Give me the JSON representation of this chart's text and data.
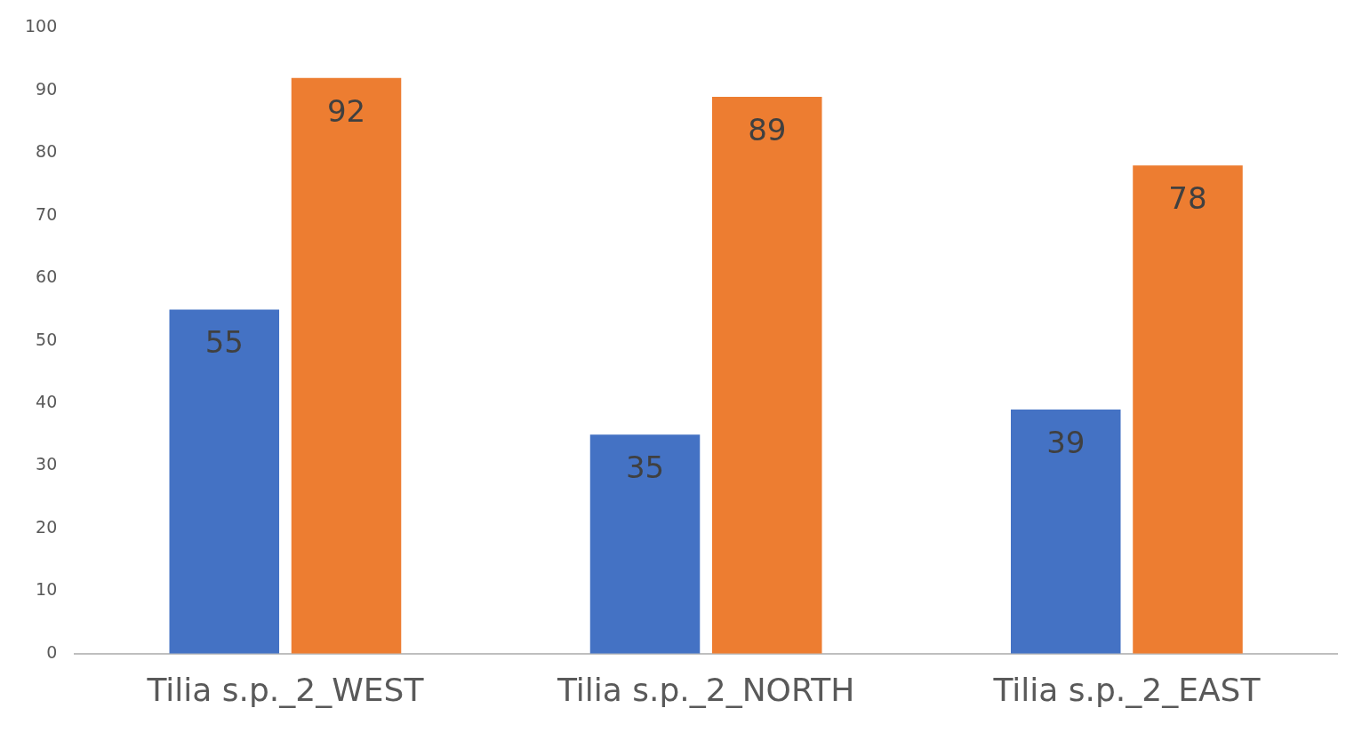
{
  "chart_data": {
    "type": "bar",
    "categories": [
      "Tilia s.p._2_WEST",
      "Tilia s.p._2_NORTH",
      "Tilia s.p._2_EAST"
    ],
    "series": [
      {
        "color": "#4472c4",
        "values": [
          55,
          35,
          39
        ]
      },
      {
        "color": "#ed7d31",
        "values": [
          92,
          89,
          78
        ]
      }
    ],
    "ylim": [
      0,
      100
    ],
    "yticks": [
      0,
      10,
      20,
      30,
      40,
      50,
      60,
      70,
      80,
      90,
      100
    ],
    "data_labels": true
  }
}
